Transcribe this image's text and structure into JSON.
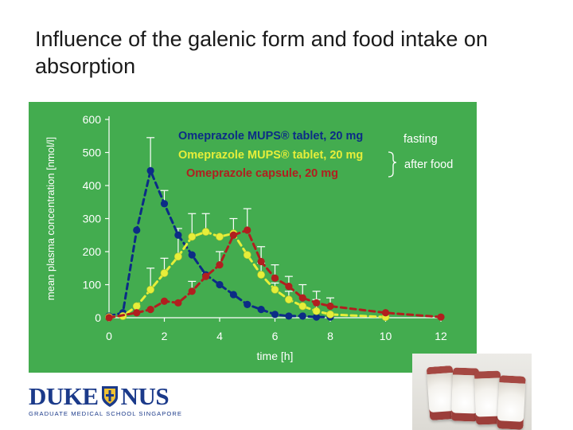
{
  "title": "Influence of the galenic form and food intake on absorption",
  "colors": {
    "chart_background": "#43ac4f",
    "fasting_series": "#0c2c86",
    "fed_tablet_series": "#e6ee3a",
    "fed_capsule_series": "#b11f1f",
    "axis_text": "#ffffff",
    "logo_blue": "#1b3a8a"
  },
  "chart_data": {
    "type": "line",
    "title": "",
    "xlabel": "time [h]",
    "ylabel": "mean plasma concentration [nmol/l]",
    "xlim": [
      0,
      12
    ],
    "ylim": [
      0,
      600
    ],
    "xticks": [
      0,
      2,
      4,
      6,
      8,
      10,
      12
    ],
    "yticks": [
      0,
      100,
      200,
      300,
      400,
      500,
      600
    ],
    "grid": false,
    "legend": {
      "placement": "top",
      "groups": [
        {
          "label": "fasting",
          "entries": [
            0
          ]
        },
        {
          "label": "after food",
          "entries": [
            1,
            2
          ]
        }
      ]
    },
    "series": [
      {
        "name": "Omeprazole MUPS® tablet, 20 mg",
        "color": "#0c2c86",
        "x": [
          0,
          0.5,
          1,
          1.5,
          2,
          2.5,
          3,
          3.5,
          4,
          4.5,
          5,
          5.5,
          6,
          6.5,
          7,
          7.5,
          8
        ],
        "y": [
          5,
          15,
          265,
          445,
          345,
          250,
          190,
          130,
          100,
          70,
          40,
          25,
          10,
          5,
          5,
          2,
          2
        ],
        "error_top": [
          null,
          null,
          null,
          545,
          385,
          null,
          null,
          null,
          null,
          null,
          null,
          null,
          null,
          null,
          null,
          null,
          null
        ]
      },
      {
        "name": "Omeprazole MUPS® tablet, 20 mg",
        "color": "#e6ee3a",
        "x": [
          0,
          0.5,
          1,
          1.5,
          2,
          2.5,
          3,
          3.5,
          4,
          4.5,
          5,
          5.5,
          6,
          6.5,
          7,
          7.5,
          8,
          10
        ],
        "y": [
          2,
          5,
          35,
          85,
          135,
          185,
          245,
          260,
          245,
          255,
          190,
          130,
          85,
          55,
          35,
          20,
          10,
          2
        ],
        "error_top": [
          null,
          null,
          null,
          150,
          180,
          270,
          315,
          315,
          null,
          300,
          null,
          165,
          105,
          80,
          null,
          55,
          null,
          null
        ]
      },
      {
        "name": "Omeprazole capsule, 20 mg",
        "color": "#b11f1f",
        "x": [
          0,
          1,
          1.5,
          2,
          2.5,
          3,
          3.5,
          4,
          4.5,
          5,
          5.5,
          6,
          6.5,
          7,
          7.5,
          8,
          10,
          12
        ],
        "y": [
          0,
          15,
          25,
          50,
          45,
          80,
          125,
          160,
          250,
          265,
          170,
          120,
          95,
          60,
          45,
          35,
          15,
          2
        ],
        "error_top": [
          null,
          null,
          null,
          null,
          null,
          110,
          135,
          200,
          null,
          330,
          215,
          160,
          125,
          100,
          80,
          60,
          null,
          null
        ]
      }
    ]
  },
  "logo": {
    "left_word": "DUKE",
    "right_word": "NUS",
    "tagline": "GRADUATE MEDICAL SCHOOL SINGAPORE"
  },
  "photo": {
    "subject": "omeprazole MUPS tablets (photo)"
  }
}
